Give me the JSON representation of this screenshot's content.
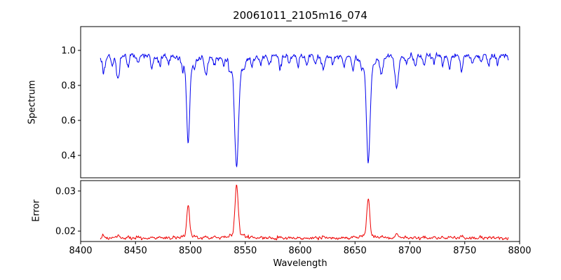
{
  "title": "20061011_2105m16_074",
  "chart_data": {
    "type": "line",
    "title": "20061011_2105m16_074",
    "xlabel": "Wavelength",
    "xlim": [
      8400,
      8800
    ],
    "xticks": [
      8400,
      8450,
      8500,
      8550,
      8600,
      8650,
      8700,
      8750,
      8800
    ],
    "x_data_range": [
      8418,
      8790
    ],
    "sample_step": 0.35,
    "grid": false,
    "legend": "none",
    "subplots": [
      {
        "name": "spectrum",
        "ylabel": "Spectrum",
        "ylim": [
          0.272,
          1.136
        ],
        "yticks": [
          0.4,
          0.6,
          0.8,
          1.0
        ],
        "ytick_decimals": 1,
        "line_color": "#0000ee",
        "continuum": 0.968,
        "noise_sigma": 0.012
      },
      {
        "name": "error",
        "ylabel": "Error",
        "ylim": [
          0.0174,
          0.0326
        ],
        "yticks": [
          0.02,
          0.03
        ],
        "ytick_decimals": 2,
        "line_color": "#ee0000",
        "baseline": 0.0182,
        "noise_sigma": 0.00028
      }
    ],
    "absorption_lines": [
      {
        "center": 8498.0,
        "depth": 0.5,
        "width": 1.3,
        "error_peak": 0.0082,
        "error_width": 1.2
      },
      {
        "center": 8542.1,
        "depth": 0.63,
        "width": 1.7,
        "error_peak": 0.0132,
        "error_width": 1.4
      },
      {
        "center": 8662.1,
        "depth": 0.62,
        "width": 1.5,
        "error_peak": 0.0099,
        "error_width": 1.3
      }
    ],
    "minor_lines": [
      [
        8421,
        0.1,
        1.2
      ],
      [
        8429,
        0.05,
        0.9
      ],
      [
        8434,
        0.13,
        1.3
      ],
      [
        8443,
        0.06,
        1.0
      ],
      [
        8452,
        0.04,
        0.9
      ],
      [
        8465,
        0.07,
        1.1
      ],
      [
        8472,
        0.05,
        1.0
      ],
      [
        8480,
        0.04,
        0.9
      ],
      [
        8493,
        0.05,
        0.9
      ],
      [
        8504,
        0.05,
        0.9
      ],
      [
        8514,
        0.1,
        1.3
      ],
      [
        8522,
        0.05,
        1.0
      ],
      [
        8530,
        0.04,
        0.9
      ],
      [
        8536,
        0.05,
        0.9
      ],
      [
        8549,
        0.04,
        0.9
      ],
      [
        8556,
        0.05,
        1.0
      ],
      [
        8564,
        0.04,
        0.9
      ],
      [
        8572,
        0.04,
        0.9
      ],
      [
        8582,
        0.07,
        1.1
      ],
      [
        8590,
        0.04,
        0.9
      ],
      [
        8598,
        0.06,
        1.0
      ],
      [
        8606,
        0.04,
        0.9
      ],
      [
        8614,
        0.05,
        1.0
      ],
      [
        8621,
        0.08,
        1.2
      ],
      [
        8630,
        0.04,
        0.9
      ],
      [
        8640,
        0.05,
        1.0
      ],
      [
        8648,
        0.07,
        1.1
      ],
      [
        8656,
        0.04,
        0.9
      ],
      [
        8674,
        0.09,
        1.2
      ],
      [
        8688,
        0.185,
        1.5
      ],
      [
        8697,
        0.04,
        0.9
      ],
      [
        8705,
        0.05,
        1.0
      ],
      [
        8713,
        0.06,
        1.0
      ],
      [
        8722,
        0.04,
        0.9
      ],
      [
        8730,
        0.05,
        1.0
      ],
      [
        8736,
        0.07,
        1.1
      ],
      [
        8747,
        0.08,
        1.2
      ],
      [
        8757,
        0.05,
        1.0
      ],
      [
        8765,
        0.04,
        0.9
      ],
      [
        8772,
        0.06,
        1.0
      ],
      [
        8780,
        0.04,
        0.9
      ]
    ],
    "axis_color": "#000000",
    "background_color": "#ffffff"
  }
}
